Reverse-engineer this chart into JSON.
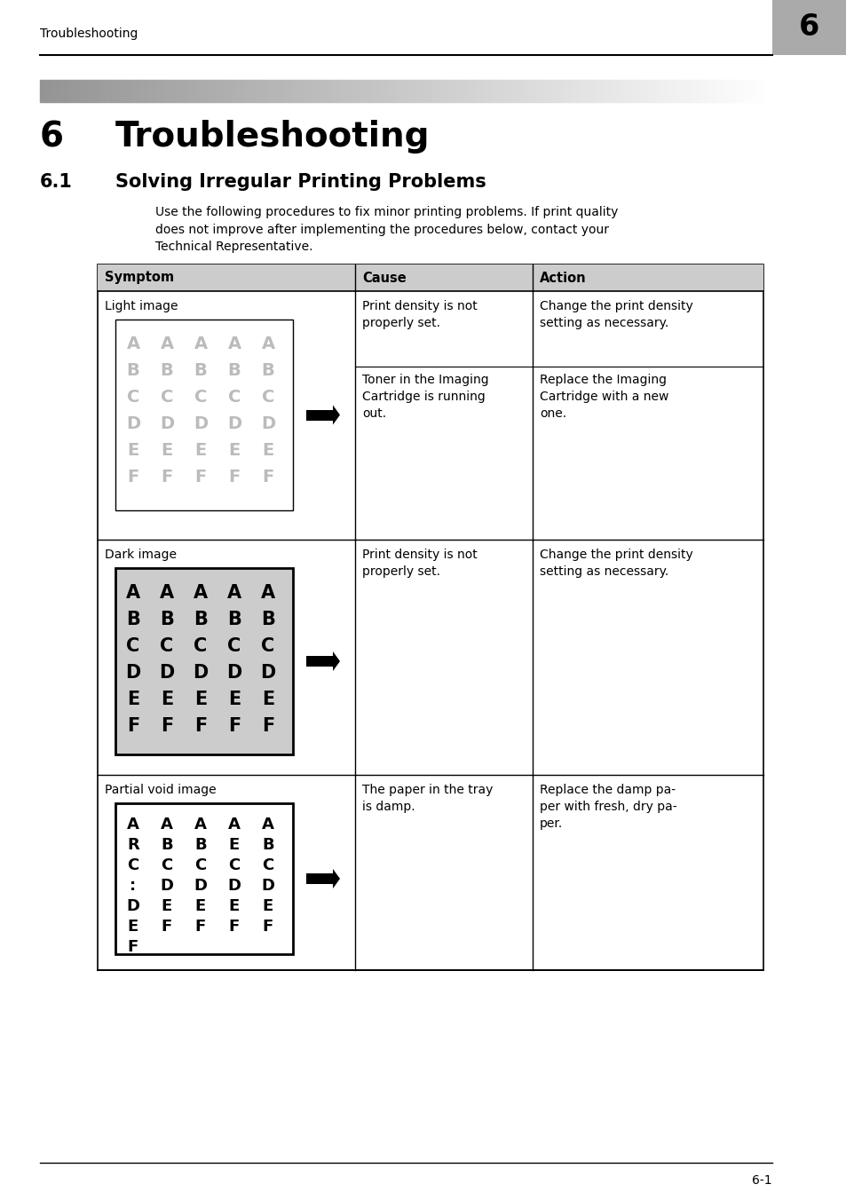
{
  "page_title": "Troubleshooting",
  "chapter_num": "6",
  "section_title_num": "6",
  "section_title_text": "Troubleshooting",
  "subsection_title": "6.1    Solving Irregular Printing Problems",
  "intro_text": "Use the following procedures to fix minor printing problems. If print quality\ndoes not improve after implementing the procedures below, contact your\nTechnical Representative.",
  "table_headers": [
    "Symptom",
    "Cause",
    "Action"
  ],
  "rows": [
    {
      "symptom_label": "Light image",
      "causes": [
        "Print density is not\nproperly set.",
        "Toner in the Imaging\nCartridge is running\nout."
      ],
      "actions": [
        "Change the print density\nsetting as necessary.",
        "Replace the Imaging\nCartridge with a new\none."
      ]
    },
    {
      "symptom_label": "Dark image",
      "causes": [
        "Print density is not\nproperly set."
      ],
      "actions": [
        "Change the print density\nsetting as necessary."
      ]
    },
    {
      "symptom_label": "Partial void image",
      "causes": [
        "The paper in the tray\nis damp."
      ],
      "actions": [
        "Replace the damp pa-\nper with fresh, dry pa-\nper."
      ]
    }
  ],
  "footer_text": "6-1",
  "bg_color": "#ffffff",
  "table_header_bg": "#cccccc",
  "dark_image_bg": "#cccccc",
  "light_image_bg": "#ffffff",
  "partial_image_bg": "#ffffff"
}
